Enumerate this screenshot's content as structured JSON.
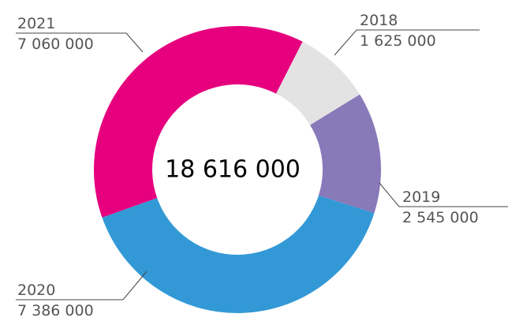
{
  "chart_data": {
    "type": "donut",
    "center_label": "18 616 000",
    "categories": [
      "2018",
      "2019",
      "2020",
      "2021"
    ],
    "values": [
      1625000,
      2545000,
      7386000,
      7060000
    ],
    "value_labels": [
      "1 625 000",
      "2 545 000",
      "7 386 000",
      "7 060 000"
    ],
    "colors": [
      "#e3e3e3",
      "#8879b9",
      "#3399d6",
      "#e6007e"
    ]
  }
}
